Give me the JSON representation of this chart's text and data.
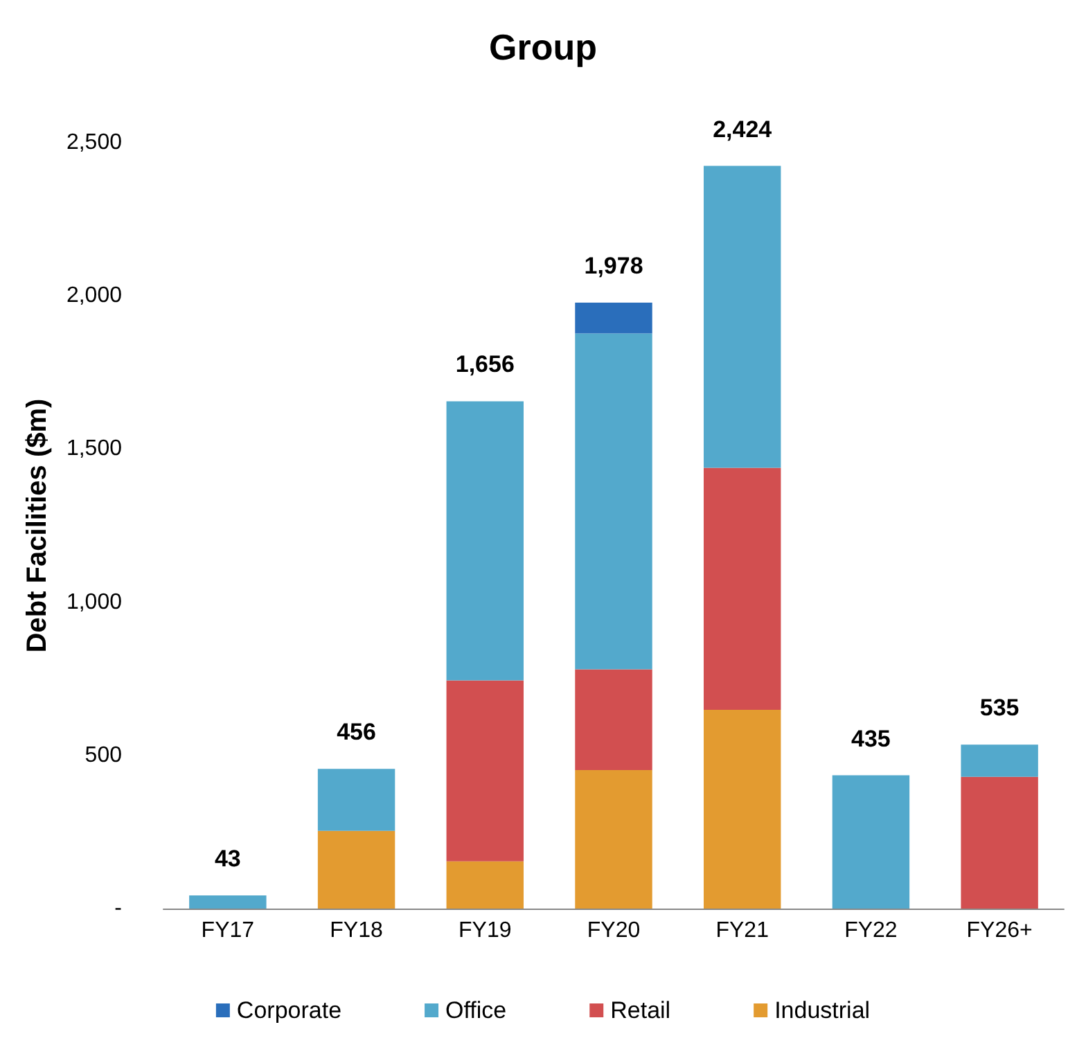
{
  "chart_data": {
    "type": "bar",
    "title": "Group",
    "ylabel": "Debt Facilities ($m)",
    "stacked": true,
    "categories": [
      "FY17",
      "FY18",
      "FY19",
      "FY20",
      "FY21",
      "FY22",
      "FY26+"
    ],
    "series": [
      {
        "name": "Industrial",
        "color": "#e39b30",
        "values": [
          null,
          254,
          154,
          452,
          649,
          null,
          null
        ]
      },
      {
        "name": "Retail",
        "color": "#d24f50",
        "values": [
          null,
          null,
          591,
          329,
          790,
          null,
          430
        ]
      },
      {
        "name": "Office",
        "color": "#53a9cc",
        "values": [
          43,
          202,
          911,
          1096,
          985,
          435,
          105
        ]
      },
      {
        "name": "Corporate",
        "color": "#2a6ebb",
        "values": [
          null,
          null,
          null,
          101,
          null,
          null,
          null
        ]
      }
    ],
    "totals": [
      "43",
      "456",
      "1,656",
      "1,978",
      "2,424",
      "435",
      "535"
    ],
    "ylim": [
      0,
      2500
    ],
    "yticks": [
      {
        "value": 0,
        "label": "-"
      },
      {
        "value": 500,
        "label": "500"
      },
      {
        "value": 1000,
        "label": "1,000"
      },
      {
        "value": 1500,
        "label": "1,500"
      },
      {
        "value": 2000,
        "label": "2,000"
      },
      {
        "value": 2500,
        "label": "2,500"
      }
    ],
    "grid": false,
    "legend": "bottom"
  }
}
